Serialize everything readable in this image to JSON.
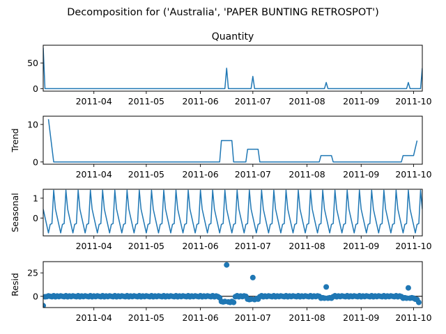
{
  "figure": {
    "title": "Decomposition for ('Australia', 'PAPER BUNTING RETROSPOT')"
  },
  "colors": {
    "line": "#1f77b4",
    "marker": "#1f77b4",
    "axis": "#000000",
    "zero_line": "#000000",
    "background": "#ffffff"
  },
  "chart_data": [
    {
      "type": "line",
      "title": "Quantity",
      "ylabel": "",
      "xlim": [
        "2011-03-03",
        "2011-10-06"
      ],
      "ylim": [
        -5,
        85
      ],
      "yticks": [
        0,
        50
      ],
      "xticks": [
        "2011-04-01",
        "2011-05-01",
        "2011-06-01",
        "2011-07-01",
        "2011-08-01",
        "2011-09-01",
        "2011-10-01"
      ],
      "xtick_labels": [
        "2011-04",
        "2011-05",
        "2011-06",
        "2011-07",
        "2011-08",
        "2011-09",
        "2011-10"
      ],
      "series": [
        {
          "points": [
            [
              "2011-03-03",
              80
            ],
            [
              "2011-03-04",
              0
            ],
            [
              "2011-06-15",
              0
            ],
            [
              "2011-06-16",
              40
            ],
            [
              "2011-06-17",
              0
            ],
            [
              "2011-06-30",
              0
            ],
            [
              "2011-07-01",
              24
            ],
            [
              "2011-07-02",
              0
            ],
            [
              "2011-08-11",
              0
            ],
            [
              "2011-08-12",
              12
            ],
            [
              "2011-08-13",
              0
            ],
            [
              "2011-09-27",
              0
            ],
            [
              "2011-09-28",
              12
            ],
            [
              "2011-09-29",
              0
            ],
            [
              "2011-10-05",
              0
            ],
            [
              "2011-10-06",
              40
            ]
          ]
        }
      ]
    },
    {
      "type": "line",
      "title": "",
      "ylabel": "Trend",
      "xlim": [
        "2011-03-03",
        "2011-10-06"
      ],
      "ylim": [
        -0.6,
        12.2
      ],
      "yticks": [
        0,
        10
      ],
      "xticks": [
        "2011-04-01",
        "2011-05-01",
        "2011-06-01",
        "2011-07-01",
        "2011-08-01",
        "2011-09-01",
        "2011-10-01"
      ],
      "xtick_labels": [
        "2011-04",
        "2011-05",
        "2011-06",
        "2011-07",
        "2011-08",
        "2011-09",
        "2011-10"
      ],
      "series": [
        {
          "points": [
            [
              "2011-03-06",
              11.4
            ],
            [
              "2011-03-09",
              0
            ],
            [
              "2011-06-12",
              0
            ],
            [
              "2011-06-13",
              5.7
            ],
            [
              "2011-06-19",
              5.7
            ],
            [
              "2011-06-20",
              0
            ],
            [
              "2011-06-27",
              0
            ],
            [
              "2011-06-28",
              3.4
            ],
            [
              "2011-07-04",
              3.4
            ],
            [
              "2011-07-05",
              0
            ],
            [
              "2011-08-08",
              0
            ],
            [
              "2011-08-09",
              1.7
            ],
            [
              "2011-08-15",
              1.7
            ],
            [
              "2011-08-16",
              0
            ],
            [
              "2011-09-24",
              0
            ],
            [
              "2011-09-25",
              1.7
            ],
            [
              "2011-10-01",
              1.7
            ],
            [
              "2011-10-03",
              5.7
            ]
          ]
        }
      ]
    },
    {
      "type": "line",
      "title": "",
      "ylabel": "Seasonal",
      "xlim": [
        "2011-03-03",
        "2011-10-06"
      ],
      "ylim": [
        -0.9,
        1.45
      ],
      "yticks": [
        0,
        1
      ],
      "xticks": [
        "2011-04-01",
        "2011-05-01",
        "2011-06-01",
        "2011-07-01",
        "2011-08-01",
        "2011-09-01",
        "2011-10-01"
      ],
      "xtick_labels": [
        "2011-04",
        "2011-05",
        "2011-06",
        "2011-07",
        "2011-08",
        "2011-09",
        "2011-10"
      ],
      "series": [
        {
          "start": "2011-03-03",
          "period_days": 7,
          "pattern": [
            0.45,
            0.05,
            -0.35,
            -0.75,
            -0.32,
            -0.28,
            1.4
          ],
          "phase": 0,
          "end": "2011-10-06"
        }
      ]
    },
    {
      "type": "scatter",
      "title": "",
      "ylabel": "Resid",
      "xlim": [
        "2011-03-03",
        "2011-10-06"
      ],
      "ylim": [
        -12,
        37
      ],
      "yticks": [
        0,
        25
      ],
      "xticks": [
        "2011-04-01",
        "2011-05-01",
        "2011-06-01",
        "2011-07-01",
        "2011-08-01",
        "2011-09-01",
        "2011-10-01"
      ],
      "xtick_labels": [
        "2011-04",
        "2011-05",
        "2011-06",
        "2011-07",
        "2011-08",
        "2011-09",
        "2011-10"
      ],
      "zero_line": true,
      "series": [
        {
          "start": "2011-03-06",
          "end": "2011-10-04",
          "base_pattern": [
            0.4,
            0.0,
            -0.4,
            0.6,
            -0.5,
            0.3,
            -0.3
          ],
          "overrides": [
            [
              "2011-03-03",
              -10
            ],
            [
              "2011-03-04",
              -0.5
            ],
            [
              "2011-03-05",
              -0.3
            ],
            [
              "2011-06-12",
              -1.5
            ],
            [
              "2011-06-13",
              -5.5
            ],
            [
              "2011-06-14",
              -6
            ],
            [
              "2011-06-15",
              -5.5
            ],
            [
              "2011-06-16",
              33.5
            ],
            [
              "2011-06-17",
              -6
            ],
            [
              "2011-06-18",
              -6.5
            ],
            [
              "2011-06-19",
              -5.5
            ],
            [
              "2011-06-20",
              -6.5
            ],
            [
              "2011-06-28",
              -3
            ],
            [
              "2011-06-29",
              -3.5
            ],
            [
              "2011-06-30",
              -3
            ],
            [
              "2011-07-01",
              20
            ],
            [
              "2011-07-02",
              -3.5
            ],
            [
              "2011-07-03",
              -2.5
            ],
            [
              "2011-07-04",
              -3
            ],
            [
              "2011-08-09",
              -2
            ],
            [
              "2011-08-10",
              -1.5
            ],
            [
              "2011-08-11",
              -2
            ],
            [
              "2011-08-12",
              10
            ],
            [
              "2011-08-13",
              -2
            ],
            [
              "2011-08-14",
              -1.5
            ],
            [
              "2011-08-15",
              -2
            ],
            [
              "2011-09-25",
              -2
            ],
            [
              "2011-09-26",
              -1.5
            ],
            [
              "2011-09-27",
              -2
            ],
            [
              "2011-09-28",
              9
            ],
            [
              "2011-09-29",
              -2
            ],
            [
              "2011-09-30",
              -1.5
            ],
            [
              "2011-10-01",
              -2
            ],
            [
              "2011-10-02",
              -3
            ],
            [
              "2011-10-03",
              -3.5
            ],
            [
              "2011-10-04",
              -6.5
            ]
          ]
        }
      ]
    }
  ]
}
